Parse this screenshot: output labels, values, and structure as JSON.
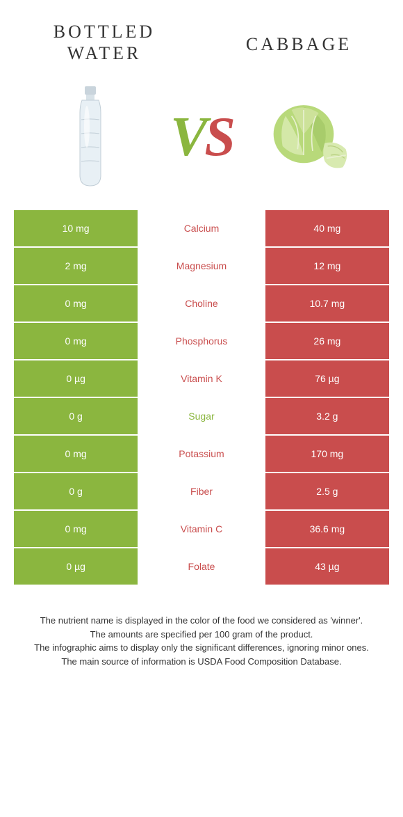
{
  "colors": {
    "left": "#8bb63f",
    "right": "#c94d4d",
    "bg": "#ffffff",
    "text": "#333333"
  },
  "titles": {
    "left": "BOTTLED WATER",
    "right": "CABBAGE"
  },
  "vs": {
    "v": "V",
    "s": "S"
  },
  "rows": [
    {
      "left": "10 mg",
      "label": "Calcium",
      "right": "40 mg",
      "winner": "right"
    },
    {
      "left": "2 mg",
      "label": "Magnesium",
      "right": "12 mg",
      "winner": "right"
    },
    {
      "left": "0 mg",
      "label": "Choline",
      "right": "10.7 mg",
      "winner": "right"
    },
    {
      "left": "0 mg",
      "label": "Phosphorus",
      "right": "26 mg",
      "winner": "right"
    },
    {
      "left": "0 µg",
      "label": "Vitamin K",
      "right": "76 µg",
      "winner": "right"
    },
    {
      "left": "0 g",
      "label": "Sugar",
      "right": "3.2 g",
      "winner": "left"
    },
    {
      "left": "0 mg",
      "label": "Potassium",
      "right": "170 mg",
      "winner": "right"
    },
    {
      "left": "0 g",
      "label": "Fiber",
      "right": "2.5 g",
      "winner": "right"
    },
    {
      "left": "0 mg",
      "label": "Vitamin C",
      "right": "36.6 mg",
      "winner": "right"
    },
    {
      "left": "0 µg",
      "label": "Folate",
      "right": "43 µg",
      "winner": "right"
    }
  ],
  "footer": {
    "line1": "The nutrient name is displayed in the color of the food we considered as 'winner'.",
    "line2": "The amounts are specified per 100 gram of the product.",
    "line3": "The infographic aims to display only the significant differences, ignoring minor ones.",
    "line4": "The main source of information is USDA Food Composition Database."
  }
}
